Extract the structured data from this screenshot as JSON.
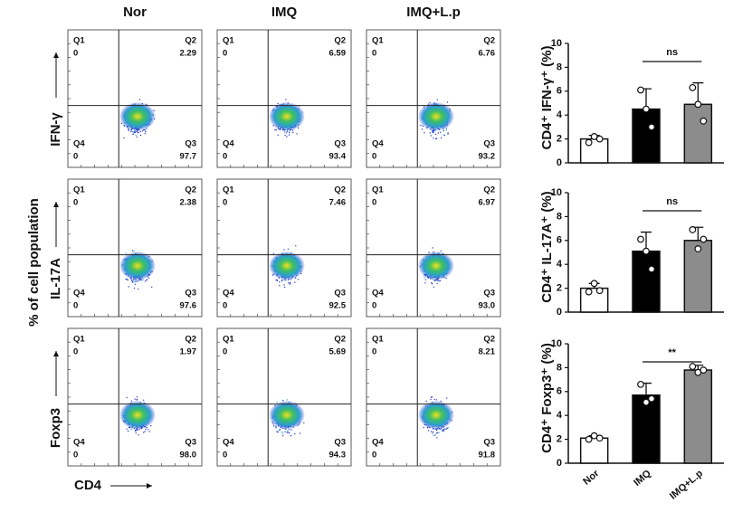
{
  "figure": {
    "y_label": "% of cell population",
    "columns": [
      "Nor",
      "IMQ",
      "IMQ+L.p"
    ],
    "x_marker": "CD4",
    "quadrants": [
      "Q1",
      "Q2",
      "Q3",
      "Q4"
    ],
    "rows": [
      {
        "marker": "IFN-γ",
        "panels": [
          [
            "0",
            "2.29",
            "97.7",
            "0"
          ],
          [
            "0",
            "6.59",
            "93.4",
            "0"
          ],
          [
            "0",
            "6.76",
            "93.2",
            "0"
          ]
        ]
      },
      {
        "marker": "IL-17A",
        "panels": [
          [
            "0",
            "2.38",
            "97.6",
            "0"
          ],
          [
            "0",
            "7.46",
            "92.5",
            "0"
          ],
          [
            "0",
            "6.97",
            "93.0",
            "0"
          ]
        ]
      },
      {
        "marker": "Foxp3",
        "panels": [
          [
            "0",
            "1.97",
            "98.0",
            "0"
          ],
          [
            "0",
            "5.69",
            "94.3",
            "0"
          ],
          [
            "0",
            "8.21",
            "91.8",
            "0"
          ]
        ]
      }
    ]
  },
  "chart_data": [
    {
      "type": "bar",
      "y_label": "CD4⁺ IFN-γ⁺ (%)",
      "values": [
        2.0,
        4.5,
        4.9
      ],
      "errors": [
        0.3,
        1.7,
        1.8
      ],
      "points": [
        [
          1.7,
          2.2,
          2.0
        ],
        [
          6.1,
          4.5,
          3.0
        ],
        [
          6.3,
          4.9,
          3.5
        ]
      ],
      "colors": [
        "#ffffff",
        "#000000",
        "#8c8c8c"
      ],
      "ylim": [
        0,
        10
      ],
      "yticks": [
        0,
        2,
        4,
        6,
        8,
        10
      ],
      "annotation": {
        "text": "ns",
        "from": 1,
        "to": 2
      }
    },
    {
      "type": "bar",
      "y_label": "CD4⁺ IL-17A⁺ (%)",
      "values": [
        2.0,
        5.1,
        6.0
      ],
      "errors": [
        0.4,
        1.6,
        1.1
      ],
      "points": [
        [
          1.7,
          2.4,
          1.8
        ],
        [
          6.1,
          5.1,
          3.6
        ],
        [
          6.9,
          5.3,
          6.1
        ]
      ],
      "colors": [
        "#ffffff",
        "#000000",
        "#8c8c8c"
      ],
      "ylim": [
        0,
        10
      ],
      "yticks": [
        0,
        2,
        4,
        6,
        8,
        10
      ],
      "annotation": {
        "text": "ns",
        "from": 1,
        "to": 2
      }
    },
    {
      "type": "bar",
      "y_label": "CD4⁺ Foxp3⁺ (%)",
      "categories": [
        "Nor",
        "IMQ",
        "IMQ+L.p"
      ],
      "values": [
        2.1,
        5.7,
        7.8
      ],
      "errors": [
        0.2,
        1.0,
        0.4
      ],
      "points": [
        [
          2.0,
          2.3,
          2.1
        ],
        [
          6.6,
          5.1,
          5.4
        ],
        [
          8.1,
          7.6,
          7.8
        ]
      ],
      "colors": [
        "#ffffff",
        "#000000",
        "#8c8c8c"
      ],
      "ylim": [
        0,
        10
      ],
      "yticks": [
        0,
        2,
        4,
        6,
        8,
        10
      ],
      "annotation": {
        "text": "**",
        "from": 1,
        "to": 2
      }
    }
  ]
}
